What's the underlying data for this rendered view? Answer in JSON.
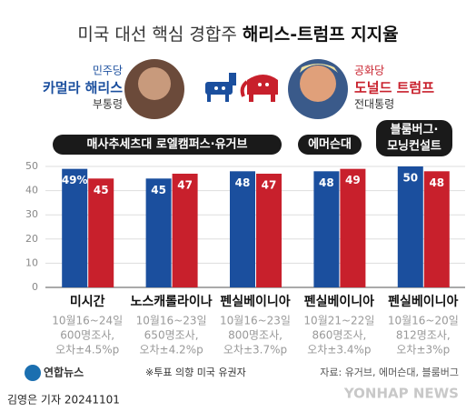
{
  "chart_data": {
    "type": "bar",
    "title_regular": "미국 대선 핵심 경합주",
    "title_bold": "해리스-트럼프 지지율",
    "candidates": [
      {
        "party": "민주당",
        "role": "부통령"
      },
      {
        "party": "공화당",
        "role": "전대통령"
      }
    ],
    "pollsters": [
      "매사추세츠대 로엘캠퍼스·유거브",
      "에머슨대",
      [
        "블룸버그·",
        "모닝컨설트"
      ]
    ],
    "categories": [
      "미시간",
      "노스캐롤라이나",
      "펜실베이니아",
      "펜실베이니아",
      "펜실베이니아"
    ],
    "notes": [
      [
        "10월16~24일",
        "600명조사,",
        "오차±4.5%p"
      ],
      [
        "10월16~23일",
        "650명조사,",
        "오차±4.2%p"
      ],
      [
        "10월16~23일",
        "800명조사,",
        "오차±3.7%p"
      ],
      [
        "10월21~22일",
        "860명조사,",
        "오차±3.4%p"
      ],
      [
        "10월16~20일",
        "812명조사,",
        "오차±3%p"
      ]
    ],
    "series": [
      {
        "name": "카멀라 해리스",
        "color": "#1b4f9e",
        "values": [
          49,
          45,
          48,
          48,
          50
        ],
        "value_labels": [
          "49%",
          "45",
          "48",
          "48",
          "50"
        ]
      },
      {
        "name": "도널드 트럼프",
        "color": "#c8202c",
        "values": [
          45,
          47,
          47,
          49,
          48
        ]
      }
    ],
    "ylim": [
      0,
      50
    ],
    "yticks": [
      0,
      10,
      20,
      30,
      40,
      50
    ],
    "grid": true,
    "footnote": "※투표 의향 미국 유권자",
    "source": "자료: 유거브, 에머슨대, 블룸버그",
    "logo": "연합뉴스",
    "credit": "김영은 기자  20241101",
    "watermark": "YONHAP NEWS"
  }
}
